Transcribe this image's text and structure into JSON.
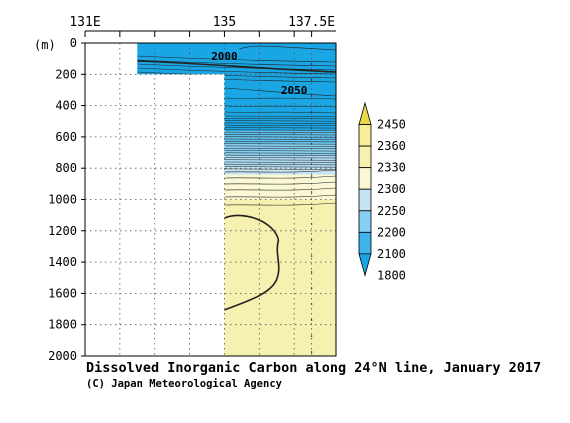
{
  "chart_data": {
    "type": "heatmap",
    "title": "Dissolved Inorganic Carbon along 24°N line, January 2017",
    "credit": "(C) Japan Meteorological Agency",
    "x_ticks": [
      {
        "value": 131,
        "label": "131E"
      },
      {
        "value": 132,
        "label": ""
      },
      {
        "value": 133,
        "label": ""
      },
      {
        "value": 134,
        "label": ""
      },
      {
        "value": 135,
        "label": "135"
      },
      {
        "value": 136,
        "label": ""
      },
      {
        "value": 137,
        "label": ""
      },
      {
        "value": 137.5,
        "label": "137.5E"
      }
    ],
    "x_range": [
      131,
      138.2
    ],
    "y_unit_label": "(m)",
    "y_ticks": [
      0,
      200,
      400,
      600,
      800,
      1000,
      1200,
      1400,
      1600,
      1800,
      2000
    ],
    "y_range": [
      0,
      2000
    ],
    "y_inverted": true,
    "grid": "dotted",
    "legend": {
      "placement": "right",
      "levels": [
        1800,
        2100,
        2200,
        2250,
        2300,
        2330,
        2360,
        2450
      ],
      "colors": [
        "#1aa6e4",
        "#3db4e9",
        "#86cff0",
        "#c6e5f3",
        "#fbf8d5",
        "#f6f1b0",
        "#f6ee9a",
        "#ebd94a"
      ]
    },
    "contour_labels": [
      {
        "text": "2000",
        "lon": 135.0,
        "depth": 110
      },
      {
        "text": "2050",
        "lon": 137.0,
        "depth": 325
      }
    ],
    "value_bands": [
      {
        "from_depth": 0,
        "to_depth": 840,
        "value": 2080
      },
      {
        "from_depth": 840,
        "to_depth": 1000,
        "value": 2310
      },
      {
        "from_depth": 1000,
        "to_depth": 2000,
        "value": 2340
      }
    ],
    "sampled_sections": [
      {
        "lon_from": 132.5,
        "lon_to": 135,
        "max_depth": 200
      },
      {
        "lon_from": 135,
        "lon_to": 138.2,
        "max_depth": 2000
      }
    ]
  }
}
